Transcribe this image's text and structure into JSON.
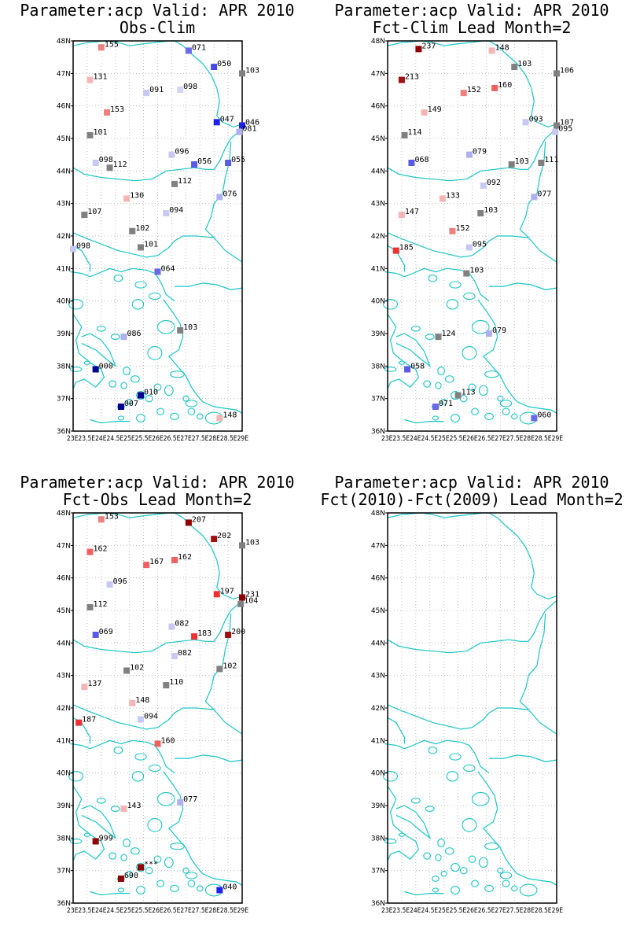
{
  "panels": [
    {
      "title": "Parameter:acp Valid: APR 2010",
      "subtitle": "Obs-Clim",
      "stations": [
        {
          "lat": 47.8,
          "lon": 24.0,
          "v": "155",
          "c": "#f08080"
        },
        {
          "lat": 47.7,
          "lon": 27.1,
          "v": "071",
          "c": "#6a6ae6"
        },
        {
          "lat": 47.2,
          "lon": 28.0,
          "v": "050",
          "c": "#4848ea"
        },
        {
          "lat": 47.0,
          "lon": 29.0,
          "v": "103",
          "c": "#808080"
        },
        {
          "lat": 46.8,
          "lon": 23.6,
          "v": "131",
          "c": "#f5b5b5"
        },
        {
          "lat": 46.4,
          "lon": 25.6,
          "v": "091",
          "c": "#c8c8f5"
        },
        {
          "lat": 46.5,
          "lon": 26.8,
          "v": "098",
          "c": "#d5d5f5"
        },
        {
          "lat": 45.8,
          "lon": 24.2,
          "v": "153",
          "c": "#f08080"
        },
        {
          "lat": 45.5,
          "lon": 28.1,
          "v": "047",
          "c": "#2020ee"
        },
        {
          "lat": 45.4,
          "lon": 29.0,
          "v": "046",
          "c": "#2020ee"
        },
        {
          "lat": 45.2,
          "lon": 28.9,
          "v": "081",
          "c": "#b0b0f0"
        },
        {
          "lat": 45.1,
          "lon": 23.6,
          "v": "101",
          "c": "#808080"
        },
        {
          "lat": 44.5,
          "lon": 26.5,
          "v": "096",
          "c": "#c8c8f5"
        },
        {
          "lat": 44.25,
          "lon": 23.8,
          "v": "098",
          "c": "#c8c8f5"
        },
        {
          "lat": 44.1,
          "lon": 24.3,
          "v": "112",
          "c": "#808080"
        },
        {
          "lat": 44.2,
          "lon": 27.3,
          "v": "056",
          "c": "#5a5ae8"
        },
        {
          "lat": 44.25,
          "lon": 28.5,
          "v": "055",
          "c": "#5a5ae8"
        },
        {
          "lat": 43.6,
          "lon": 26.6,
          "v": "112",
          "c": "#808080"
        },
        {
          "lat": 43.2,
          "lon": 28.2,
          "v": "076",
          "c": "#b0b0f0"
        },
        {
          "lat": 43.15,
          "lon": 24.9,
          "v": "130",
          "c": "#f5b5b5"
        },
        {
          "lat": 42.65,
          "lon": 23.4,
          "v": "107",
          "c": "#808080"
        },
        {
          "lat": 42.7,
          "lon": 26.3,
          "v": "094",
          "c": "#c8c8f5"
        },
        {
          "lat": 42.15,
          "lon": 25.1,
          "v": "102",
          "c": "#808080"
        },
        {
          "lat": 41.65,
          "lon": 25.4,
          "v": "101",
          "c": "#808080"
        },
        {
          "lat": 41.6,
          "lon": 23.0,
          "v": "098",
          "c": "#c8c8f5"
        },
        {
          "lat": 40.9,
          "lon": 26.0,
          "v": "064",
          "c": "#6a6ae6"
        },
        {
          "lat": 39.1,
          "lon": 26.8,
          "v": "103",
          "c": "#808080"
        },
        {
          "lat": 38.9,
          "lon": 24.8,
          "v": "086",
          "c": "#b0b0f0"
        },
        {
          "lat": 37.9,
          "lon": 23.8,
          "v": "000",
          "c": "#000090"
        },
        {
          "lat": 37.1,
          "lon": 25.4,
          "v": "010",
          "c": "#000090"
        },
        {
          "lat": 36.75,
          "lon": 24.7,
          "v": "007",
          "c": "#000090"
        },
        {
          "lat": 36.4,
          "lon": 28.2,
          "v": "148",
          "c": "#f5b5b5"
        }
      ]
    },
    {
      "title": "Parameter:acp Valid: APR 2010",
      "subtitle": "Fct-Clim Lead Month=2",
      "stations": [
        {
          "lat": 47.75,
          "lon": 24.1,
          "v": "237",
          "c": "#900000"
        },
        {
          "lat": 47.7,
          "lon": 26.7,
          "v": "148",
          "c": "#f5b5b5"
        },
        {
          "lat": 47.2,
          "lon": 27.5,
          "v": "103",
          "c": "#808080"
        },
        {
          "lat": 47.0,
          "lon": 29.0,
          "v": "106",
          "c": "#808080"
        },
        {
          "lat": 46.8,
          "lon": 23.5,
          "v": "213",
          "c": "#a01010"
        },
        {
          "lat": 46.4,
          "lon": 25.7,
          "v": "152",
          "c": "#f08080"
        },
        {
          "lat": 46.55,
          "lon": 26.8,
          "v": "160",
          "c": "#f06060"
        },
        {
          "lat": 45.8,
          "lon": 24.3,
          "v": "149",
          "c": "#f5b5b5"
        },
        {
          "lat": 45.5,
          "lon": 27.9,
          "v": "093",
          "c": "#c8c8f5"
        },
        {
          "lat": 45.4,
          "lon": 29.0,
          "v": "107",
          "c": "#808080"
        },
        {
          "lat": 45.2,
          "lon": 28.95,
          "v": "095",
          "c": "#c8c8f5"
        },
        {
          "lat": 45.1,
          "lon": 23.6,
          "v": "114",
          "c": "#808080"
        },
        {
          "lat": 44.5,
          "lon": 25.9,
          "v": "079",
          "c": "#b0b0f0"
        },
        {
          "lat": 44.25,
          "lon": 23.85,
          "v": "068",
          "c": "#5a5ae8"
        },
        {
          "lat": 44.2,
          "lon": 27.4,
          "v": "103",
          "c": "#808080"
        },
        {
          "lat": 44.25,
          "lon": 28.45,
          "v": "111",
          "c": "#808080"
        },
        {
          "lat": 43.55,
          "lon": 26.4,
          "v": "092",
          "c": "#c8c8f5"
        },
        {
          "lat": 43.2,
          "lon": 28.2,
          "v": "077",
          "c": "#b0b0f0"
        },
        {
          "lat": 43.15,
          "lon": 24.95,
          "v": "133",
          "c": "#f5b5b5"
        },
        {
          "lat": 42.65,
          "lon": 23.5,
          "v": "147",
          "c": "#f5b5b5"
        },
        {
          "lat": 42.7,
          "lon": 26.3,
          "v": "103",
          "c": "#808080"
        },
        {
          "lat": 42.15,
          "lon": 25.3,
          "v": "152",
          "c": "#f08080"
        },
        {
          "lat": 41.65,
          "lon": 25.9,
          "v": "095",
          "c": "#c8c8f5"
        },
        {
          "lat": 41.55,
          "lon": 23.3,
          "v": "185",
          "c": "#f03030"
        },
        {
          "lat": 40.85,
          "lon": 25.8,
          "v": "103",
          "c": "#808080"
        },
        {
          "lat": 39.0,
          "lon": 26.6,
          "v": "079",
          "c": "#b0b0f0"
        },
        {
          "lat": 38.9,
          "lon": 24.8,
          "v": "124",
          "c": "#808080"
        },
        {
          "lat": 37.9,
          "lon": 23.7,
          "v": "058",
          "c": "#5a5ae8"
        },
        {
          "lat": 37.1,
          "lon": 25.5,
          "v": "113",
          "c": "#808080"
        },
        {
          "lat": 36.75,
          "lon": 24.7,
          "v": "071",
          "c": "#6a6ae6"
        },
        {
          "lat": 36.4,
          "lon": 28.2,
          "v": "060",
          "c": "#6a6ae6"
        }
      ]
    },
    {
      "title": "Parameter:acp Valid: APR 2010",
      "subtitle": "Fct-Obs Lead Month=2",
      "stations": [
        {
          "lat": 47.8,
          "lon": 24.0,
          "v": "153",
          "c": "#f08080"
        },
        {
          "lat": 47.7,
          "lon": 27.1,
          "v": "207",
          "c": "#900000"
        },
        {
          "lat": 47.2,
          "lon": 28.0,
          "v": "202",
          "c": "#a01010"
        },
        {
          "lat": 47.0,
          "lon": 29.0,
          "v": "103",
          "c": "#808080"
        },
        {
          "lat": 46.8,
          "lon": 23.6,
          "v": "162",
          "c": "#f06060"
        },
        {
          "lat": 46.4,
          "lon": 25.6,
          "v": "167",
          "c": "#f06060"
        },
        {
          "lat": 46.55,
          "lon": 26.6,
          "v": "162",
          "c": "#f06060"
        },
        {
          "lat": 45.8,
          "lon": 24.3,
          "v": "096",
          "c": "#c8c8f5"
        },
        {
          "lat": 45.5,
          "lon": 28.1,
          "v": "197",
          "c": "#f03030"
        },
        {
          "lat": 45.4,
          "lon": 29.0,
          "v": "231",
          "c": "#900000"
        },
        {
          "lat": 45.2,
          "lon": 28.95,
          "v": "104",
          "c": "#808080"
        },
        {
          "lat": 45.1,
          "lon": 23.6,
          "v": "112",
          "c": "#808080"
        },
        {
          "lat": 44.5,
          "lon": 26.5,
          "v": "082",
          "c": "#c8c8f5"
        },
        {
          "lat": 44.25,
          "lon": 23.8,
          "v": "069",
          "c": "#5a5ae8"
        },
        {
          "lat": 44.2,
          "lon": 27.3,
          "v": "183",
          "c": "#f03030"
        },
        {
          "lat": 44.25,
          "lon": 28.5,
          "v": "200",
          "c": "#a01010"
        },
        {
          "lat": 43.6,
          "lon": 26.6,
          "v": "082",
          "c": "#c8c8f5"
        },
        {
          "lat": 43.2,
          "lon": 28.2,
          "v": "102",
          "c": "#808080"
        },
        {
          "lat": 43.15,
          "lon": 24.9,
          "v": "102",
          "c": "#808080"
        },
        {
          "lat": 42.65,
          "lon": 23.4,
          "v": "137",
          "c": "#f5b5b5"
        },
        {
          "lat": 42.7,
          "lon": 26.3,
          "v": "110",
          "c": "#808080"
        },
        {
          "lat": 42.15,
          "lon": 25.1,
          "v": "148",
          "c": "#f5b5b5"
        },
        {
          "lat": 41.65,
          "lon": 25.4,
          "v": "094",
          "c": "#c8c8f5"
        },
        {
          "lat": 41.55,
          "lon": 23.2,
          "v": "187",
          "c": "#f03030"
        },
        {
          "lat": 40.9,
          "lon": 26.0,
          "v": "160",
          "c": "#f06060"
        },
        {
          "lat": 39.1,
          "lon": 26.8,
          "v": "077",
          "c": "#b0b0f0"
        },
        {
          "lat": 38.9,
          "lon": 24.8,
          "v": "143",
          "c": "#f5b5b5"
        },
        {
          "lat": 37.9,
          "lon": 23.8,
          "v": "999",
          "c": "#900000"
        },
        {
          "lat": 37.1,
          "lon": 25.4,
          "v": "***",
          "c": "#900000"
        },
        {
          "lat": 36.75,
          "lon": 24.7,
          "v": "690",
          "c": "#900000"
        },
        {
          "lat": 36.4,
          "lon": 28.2,
          "v": "040",
          "c": "#2020ee"
        }
      ]
    },
    {
      "title": "Parameter:acp Valid: APR 2010",
      "subtitle": "Fct(2010)-Fct(2009) Lead Month=2",
      "stations": []
    }
  ],
  "axes": {
    "lat_labels": [
      "36N",
      "37N",
      "38N",
      "39N",
      "40N",
      "41N",
      "42N",
      "43N",
      "44N",
      "45N",
      "46N",
      "47N",
      "48N"
    ],
    "lon_labels": [
      "23E",
      "23.5E",
      "24E",
      "24.5E",
      "25E",
      "25.5E",
      "26E",
      "26.5E",
      "27E",
      "27.5E",
      "28E",
      "28.5E",
      "29E"
    ],
    "lon_label_text": "23E23.5E24E24.5E25E25.5E26E26.5E27E27.5E28E28.5E29E"
  },
  "colors": {
    "coast": "#19c6c6",
    "grid": "#b0b0b0",
    "frame": "#000000"
  }
}
